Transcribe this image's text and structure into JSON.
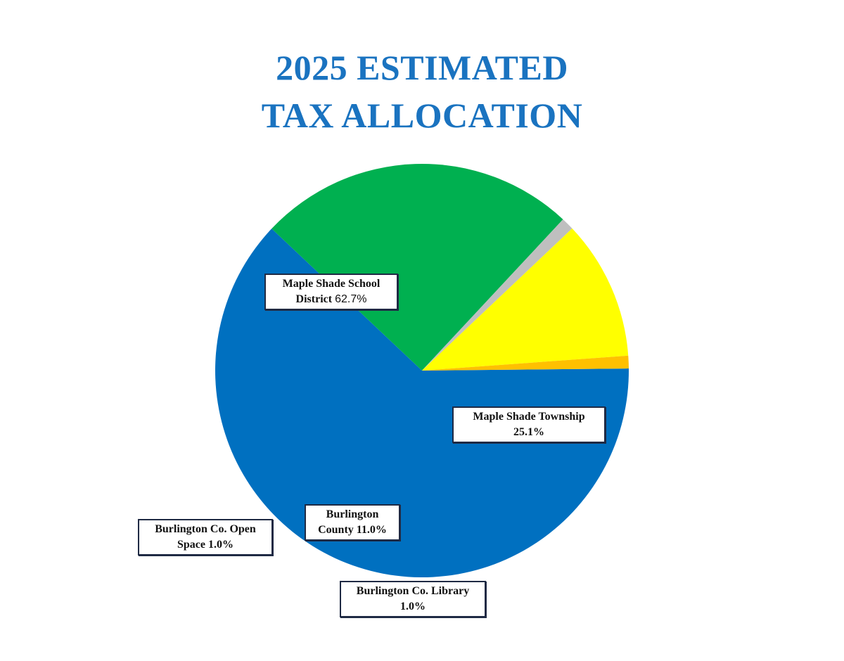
{
  "title": {
    "line1": "2025 ESTIMATED",
    "line2": "TAX ALLOCATION"
  },
  "colors": {
    "title": "#1a73c0",
    "label_border": "#1f2a44"
  },
  "chart_data": {
    "type": "pie",
    "title": "2025 ESTIMATED TAX ALLOCATION",
    "unit": "%",
    "slices": [
      {
        "name": "Maple Shade School District",
        "value": 62.7,
        "color": "#0070c0"
      },
      {
        "name": "Maple Shade Township",
        "value": 25.1,
        "color": "#00b050"
      },
      {
        "name": "Burlington Co. Library",
        "value": 1.0,
        "color": "#bfbfbf"
      },
      {
        "name": "Burlington County",
        "value": 11.0,
        "color": "#ffff00"
      },
      {
        "name": "Burlington Co. Open Space",
        "value": 1.0,
        "color": "#ffc000"
      }
    ],
    "labels": [
      {
        "line1": "Maple Shade School",
        "line2": "District",
        "pct": "62.7%"
      },
      {
        "line1": "Maple Shade Township",
        "pct": "25.1%"
      },
      {
        "line1": "Burlington Co. Library",
        "pct": "1.0%"
      },
      {
        "line1": "Burlington",
        "line2": "County",
        "pct": "11.0%"
      },
      {
        "line1": "Burlington Co. Open",
        "line2": "Space",
        "pct": "1.0%"
      }
    ]
  }
}
